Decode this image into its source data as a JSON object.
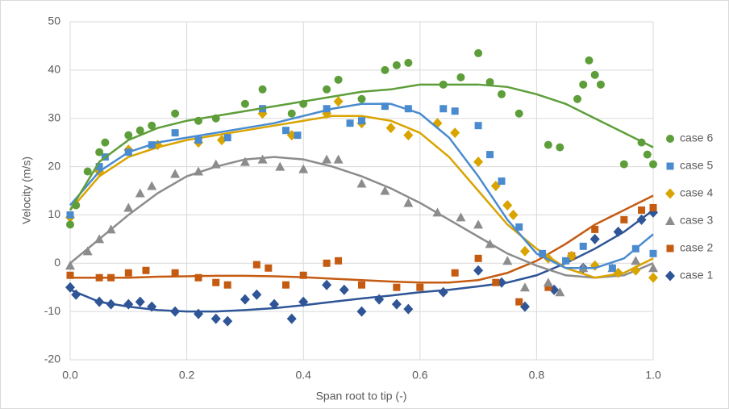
{
  "chart_data": {
    "type": "scatter",
    "x_label": "Span root to tip (-)",
    "y_label": "Velocity (m/s)",
    "xlim": [
      0,
      1
    ],
    "xticks": [
      {
        "value": 0,
        "label": "0.0"
      },
      {
        "value": 0.2,
        "label": "0.2"
      },
      {
        "value": 0.4,
        "label": "0.4"
      },
      {
        "value": 0.6,
        "label": "0.6"
      },
      {
        "value": 0.8,
        "label": "0.8"
      },
      {
        "value": 1,
        "label": "1.0"
      }
    ],
    "ylim": [
      -20,
      50
    ],
    "yticks": [
      -20,
      -10,
      0,
      10,
      20,
      30,
      40,
      50
    ],
    "grid": true,
    "legend": "right",
    "trend_x": [
      0,
      0.05,
      0.1,
      0.15,
      0.2,
      0.25,
      0.3,
      0.35,
      0.4,
      0.45,
      0.5,
      0.55,
      0.6,
      0.65,
      0.7,
      0.75,
      0.8,
      0.85,
      0.9,
      0.95,
      1
    ],
    "series": [
      {
        "name": "case 1",
        "color": "#2f5597",
        "marker": "diamond",
        "x": [
          0,
          0.01,
          0.05,
          0.07,
          0.1,
          0.12,
          0.14,
          0.18,
          0.22,
          0.25,
          0.27,
          0.3,
          0.32,
          0.35,
          0.38,
          0.4,
          0.44,
          0.47,
          0.5,
          0.53,
          0.56,
          0.58,
          0.64,
          0.7,
          0.74,
          0.78,
          0.83,
          0.88,
          0.9,
          0.94,
          0.98,
          1
        ],
        "values": [
          -5,
          -6.5,
          -8,
          -8.5,
          -8.5,
          -8,
          -9,
          -10,
          -10.5,
          -11.5,
          -12,
          -7.5,
          -6.5,
          -8.5,
          -11.5,
          -8,
          -4.5,
          -5.5,
          -10,
          -7.5,
          -8.5,
          -9.5,
          -6,
          -1.5,
          -4,
          -9,
          -5.5,
          -1,
          5,
          6.5,
          9,
          10.5
        ],
        "trend": [
          -5.5,
          -8,
          -9,
          -9.7,
          -10,
          -10,
          -9.7,
          -9.3,
          -8.7,
          -8,
          -7.3,
          -6.7,
          -6,
          -5.5,
          -4.8,
          -4,
          -2.5,
          0,
          3,
          6.5,
          11
        ]
      },
      {
        "name": "case 2",
        "color": "#c55a11",
        "marker": "square",
        "x": [
          0,
          0.05,
          0.07,
          0.1,
          0.13,
          0.18,
          0.22,
          0.25,
          0.27,
          0.32,
          0.34,
          0.37,
          0.4,
          0.44,
          0.46,
          0.5,
          0.56,
          0.6,
          0.66,
          0.7,
          0.73,
          0.77,
          0.82,
          0.86,
          0.9,
          0.95,
          0.98,
          1
        ],
        "values": [
          -2.5,
          -3,
          -3,
          -2,
          -1.5,
          -2,
          -3,
          -4,
          -4.5,
          -0.3,
          -1,
          -4.5,
          -2.5,
          0,
          0.5,
          -4.5,
          -5,
          -5,
          -2,
          1,
          -4,
          -8,
          -5,
          1.5,
          7,
          9,
          11,
          11.5
        ],
        "trend": [
          -3,
          -3,
          -3,
          -2.8,
          -2.7,
          -2.6,
          -2.6,
          -2.7,
          -2.9,
          -3.2,
          -3.5,
          -3.8,
          -4,
          -4,
          -3.5,
          -2,
          0.5,
          4,
          8,
          11,
          14
        ]
      },
      {
        "name": "case 3",
        "color": "#8c8c8c",
        "marker": "triangle",
        "x": [
          0,
          0.03,
          0.05,
          0.07,
          0.1,
          0.12,
          0.14,
          0.18,
          0.22,
          0.25,
          0.3,
          0.33,
          0.36,
          0.4,
          0.44,
          0.46,
          0.5,
          0.54,
          0.58,
          0.63,
          0.67,
          0.7,
          0.72,
          0.75,
          0.78,
          0.82,
          0.84,
          0.88,
          0.93,
          0.97,
          1
        ],
        "values": [
          -0.5,
          2.5,
          5,
          7,
          11.5,
          14.5,
          16,
          18.5,
          19,
          20.5,
          21,
          21.5,
          20,
          19.5,
          21.5,
          21.5,
          16.5,
          15,
          12.5,
          10.5,
          9.5,
          8,
          4,
          0.5,
          -5,
          -4,
          -6,
          -1,
          -1,
          0.5,
          -1
        ],
        "trend": [
          0,
          5,
          10,
          14.5,
          18,
          20,
          21.5,
          22,
          21.5,
          20,
          18,
          15.5,
          12.5,
          9,
          5.5,
          2,
          -0.5,
          -2.5,
          -3,
          -2.5,
          0
        ]
      },
      {
        "name": "case 4",
        "color": "#d9a400",
        "marker": "diamond",
        "x": [
          0,
          0.05,
          0.1,
          0.15,
          0.22,
          0.26,
          0.33,
          0.38,
          0.44,
          0.46,
          0.5,
          0.55,
          0.58,
          0.63,
          0.66,
          0.7,
          0.73,
          0.75,
          0.76,
          0.78,
          0.82,
          0.86,
          0.9,
          0.94,
          0.97,
          1
        ],
        "values": [
          9.5,
          19,
          23.5,
          24.5,
          25,
          25.5,
          31,
          26.5,
          31,
          33.5,
          29,
          28,
          26.5,
          29,
          27,
          21,
          16,
          12,
          10,
          2.5,
          1,
          1.5,
          -0.5,
          -2,
          -1.5,
          -3
        ],
        "trend": [
          11,
          18,
          22,
          24,
          25.5,
          26.5,
          27.5,
          28.5,
          29.5,
          30.5,
          30.5,
          29.5,
          27,
          22,
          15,
          8,
          3,
          -1,
          -3,
          -2,
          1
        ]
      },
      {
        "name": "case 5",
        "color": "#4a8bcf",
        "marker": "square",
        "x": [
          0,
          0.05,
          0.06,
          0.1,
          0.14,
          0.18,
          0.22,
          0.27,
          0.33,
          0.37,
          0.39,
          0.44,
          0.48,
          0.5,
          0.54,
          0.58,
          0.64,
          0.66,
          0.7,
          0.72,
          0.74,
          0.77,
          0.81,
          0.85,
          0.88,
          0.93,
          0.97,
          1
        ],
        "values": [
          10,
          20,
          22,
          23,
          24.5,
          27,
          25.5,
          26,
          32,
          27.5,
          26.5,
          32,
          29,
          29.5,
          32.5,
          32,
          32,
          31.5,
          28.5,
          22.5,
          17,
          7.5,
          2,
          0.5,
          3.5,
          -1,
          3,
          2
        ],
        "trend": [
          12,
          19,
          23,
          25,
          26,
          27,
          28,
          29,
          30.5,
          32,
          33,
          33,
          31,
          26,
          18,
          9,
          2,
          -1,
          -1,
          1,
          6
        ]
      },
      {
        "name": "case 6",
        "color": "#5e9e3a",
        "marker": "circle",
        "x": [
          0,
          0.01,
          0.03,
          0.05,
          0.06,
          0.1,
          0.12,
          0.14,
          0.18,
          0.22,
          0.25,
          0.3,
          0.33,
          0.38,
          0.4,
          0.44,
          0.46,
          0.5,
          0.54,
          0.56,
          0.58,
          0.64,
          0.67,
          0.7,
          0.72,
          0.74,
          0.77,
          0.82,
          0.84,
          0.87,
          0.88,
          0.89,
          0.9,
          0.91,
          0.95,
          0.98,
          0.99,
          1
        ],
        "values": [
          8,
          12,
          19,
          23,
          25,
          26.5,
          27.5,
          28.5,
          31,
          29.5,
          30,
          33,
          36,
          31,
          33,
          36,
          38,
          34,
          40,
          41,
          41.5,
          37,
          38.5,
          43.5,
          37.5,
          35,
          31,
          24.5,
          24,
          34,
          37,
          42,
          39,
          37,
          20.5,
          25,
          22.5,
          20.5
        ],
        "trend": [
          11,
          21,
          25.5,
          28,
          29.5,
          30.5,
          31.5,
          32.5,
          33.5,
          34.5,
          35.5,
          36,
          37,
          37,
          37,
          36.5,
          35,
          33,
          30,
          27,
          24
        ]
      }
    ]
  }
}
